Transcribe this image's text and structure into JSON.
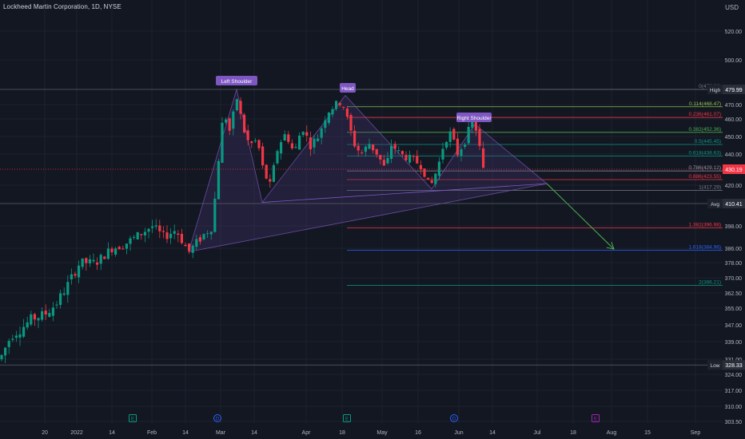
{
  "header": {
    "title": "Lockheed Martin Corporation, 1D, NYSE",
    "currency": "USD"
  },
  "chart_data": {
    "type": "candlestick",
    "title": "Lockheed Martin Corporation, 1D, NYSE",
    "y_axis": {
      "ticks": [
        520.0,
        500.0,
        470.0,
        460.0,
        450.0,
        440.0,
        420.0,
        398.0,
        386.0,
        378.0,
        370.0,
        362.5,
        355.0,
        347.0,
        339.0,
        331.0,
        324.0,
        317.0,
        310.0,
        303.5
      ],
      "tick_labels": [
        "520.00",
        "500.00",
        "470.00",
        "460.00",
        "450.00",
        "440.00",
        "420.00",
        "398.00",
        "386.00",
        "378.00",
        "370.00",
        "362.50",
        "355.00",
        "347.00",
        "339.00",
        "331.00",
        "324.00",
        "317.00",
        "310.00",
        "303.50"
      ],
      "scale": "log"
    },
    "x_axis": {
      "tick_labels": [
        "20",
        "2022",
        "14",
        "Feb",
        "14",
        "Mar",
        "14",
        "Apr",
        "18",
        "May",
        "16",
        "Jun",
        "14",
        "Jul",
        "18",
        "Aug",
        "15",
        "Sep"
      ]
    },
    "price_markers": [
      {
        "label": "High",
        "value": "479.99",
        "style": "dark"
      },
      {
        "label": "",
        "value": "430.19",
        "style": "red"
      },
      {
        "label": "Avg",
        "value": "410.41",
        "style": "dark"
      },
      {
        "label": "Low",
        "value": "328.33",
        "style": "dark"
      }
    ],
    "fib_levels": [
      {
        "label": "0(479.99)",
        "value": 479.99,
        "color": "#787b86"
      },
      {
        "label": "0.114(468.47)",
        "value": 468.47,
        "color": "#8bc34a"
      },
      {
        "label": "0.236(461.07)",
        "value": 461.07,
        "color": "#f23645"
      },
      {
        "label": "0.382(452.36)",
        "value": 452.36,
        "color": "#4caf50"
      },
      {
        "label": "0.5(445.45)",
        "value": 445.45,
        "color": "#089981"
      },
      {
        "label": "0.618(438.63)",
        "value": 438.63,
        "color": "#089981"
      },
      {
        "label": "0.786(429.12)",
        "value": 429.12,
        "color": "#9598a1"
      },
      {
        "label": "0.886(423.55)",
        "value": 423.55,
        "color": "#f23645"
      },
      {
        "label": "1(417.29)",
        "value": 417.29,
        "color": "#787b86"
      },
      {
        "label": "1.382(396.98)",
        "value": 396.98,
        "color": "#f23645"
      },
      {
        "label": "1.618(384.96)",
        "value": 384.96,
        "color": "#2962ff"
      },
      {
        "label": "2(366.21)",
        "value": 366.21,
        "color": "#089981"
      }
    ],
    "annotations": [
      {
        "text": "Left Shoulder"
      },
      {
        "text": "Head"
      },
      {
        "text": "Right Shoulder"
      }
    ],
    "event_markers": [
      {
        "text": "E",
        "color": "#089981"
      },
      {
        "text": "D",
        "color": "#2962ff"
      },
      {
        "text": "E",
        "color": "#089981"
      },
      {
        "text": "D",
        "color": "#2962ff"
      },
      {
        "text": "E",
        "color": "#9c27b0"
      }
    ],
    "colors": {
      "up": "#089981",
      "down": "#f23645",
      "background": "#131722",
      "grid": "#1e222d",
      "pattern_fill": "#4a3a7a",
      "arrow": "#4caf50"
    }
  }
}
